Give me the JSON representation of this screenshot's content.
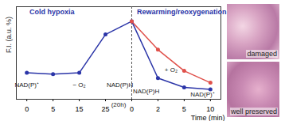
{
  "chart_data": {
    "type": "line",
    "categories": [
      "0",
      "5",
      "15",
      "25",
      "0",
      "2",
      "5",
      "10"
    ],
    "x_label": "Time (min)",
    "y_label": "F.I. (a.u. %)",
    "ylim": [
      60,
      200
    ],
    "tick_labels": "x",
    "marker": "circle",
    "series": [
      {
        "color": "#2b35a8",
        "values": [
          100,
          98,
          100,
          158,
          178,
          92,
          78,
          75
        ]
      },
      {
        "color": "#e0514b",
        "values": [
          null,
          null,
          null,
          null,
          178,
          135,
          103,
          85
        ]
      }
    ],
    "annotations": [
      "Cold hypoxia",
      "Rewarming/reoxygenation",
      "NAD(P)⁺",
      "− O₂",
      "NAD(P)H",
      "NAD(P)H",
      "+ O₂",
      "NAD(P)⁺",
      "(20h)"
    ]
  },
  "panels": [
    {
      "label": "damaged"
    },
    {
      "label": "well preserved"
    }
  ]
}
